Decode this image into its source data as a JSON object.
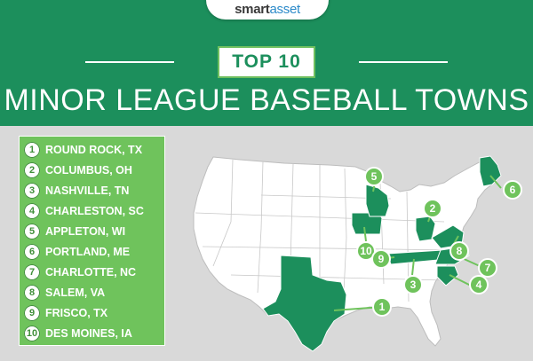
{
  "logo": {
    "smart": "smart",
    "asset": "asset"
  },
  "badge": "TOP 10",
  "headline": "MINOR LEAGUE BASEBALL TOWNS",
  "towns": [
    {
      "rank": "1",
      "name": "ROUND ROCK, TX"
    },
    {
      "rank": "2",
      "name": "COLUMBUS, OH"
    },
    {
      "rank": "3",
      "name": "NASHVILLE, TN"
    },
    {
      "rank": "4",
      "name": "CHARLESTON, SC"
    },
    {
      "rank": "5",
      "name": "APPLETON, WI"
    },
    {
      "rank": "6",
      "name": "PORTLAND, ME"
    },
    {
      "rank": "7",
      "name": "CHARLOTTE, NC"
    },
    {
      "rank": "8",
      "name": "SALEM, VA"
    },
    {
      "rank": "9",
      "name": "FRISCO, TX"
    },
    {
      "rank": "10",
      "name": "DES MOINES, IA"
    }
  ],
  "colors": {
    "header": "#1c8f5c",
    "accent": "#6fc35c",
    "highlight_state": "#1c8f5c",
    "state": "#ffffff",
    "background": "#d9d9d9"
  },
  "highlighted_states": [
    "TX",
    "OH",
    "TN",
    "SC",
    "WI",
    "ME",
    "NC",
    "VA",
    "IA"
  ]
}
